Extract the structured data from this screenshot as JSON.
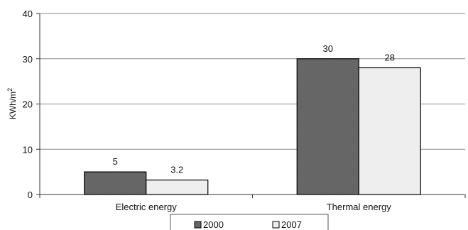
{
  "chart_data": {
    "type": "bar",
    "categories": [
      "Electric energy",
      "Thermal energy"
    ],
    "series": [
      {
        "name": "2000",
        "values": [
          5,
          30
        ],
        "color": "#6a6a6a"
      },
      {
        "name": "2007",
        "values": [
          3.2,
          28
        ],
        "color": "#eeeeee"
      }
    ],
    "data_labels": [
      [
        "5",
        "30"
      ],
      [
        "3.2",
        "28"
      ]
    ],
    "ylabel": "KWh/m",
    "ylabel_superscript": "2",
    "ylim": [
      0,
      40
    ],
    "yticks": [
      0,
      10,
      20,
      30,
      40
    ],
    "grid": true,
    "legend_position": "bottom"
  }
}
